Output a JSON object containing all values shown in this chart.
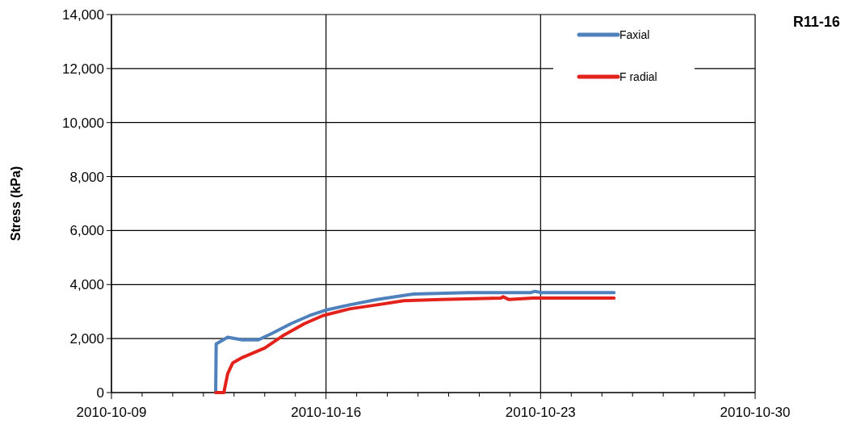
{
  "chart_data": {
    "type": "line",
    "title": "R11-16",
    "ylabel": "Stress (kPa)",
    "xlim": [
      "2010-10-09",
      "2010-10-30"
    ],
    "xticks": [
      {
        "value": "2010-10-09",
        "label": "2010-10-09"
      },
      {
        "value": "2010-10-10",
        "label": null
      },
      {
        "value": "2010-10-11",
        "label": null
      },
      {
        "value": "2010-10-12",
        "label": null
      },
      {
        "value": "2010-10-13",
        "label": null
      },
      {
        "value": "2010-10-14",
        "label": null
      },
      {
        "value": "2010-10-15",
        "label": null
      },
      {
        "value": "2010-10-16",
        "label": "2010-10-16"
      },
      {
        "value": "2010-10-17",
        "label": null
      },
      {
        "value": "2010-10-18",
        "label": null
      },
      {
        "value": "2010-10-19",
        "label": null
      },
      {
        "value": "2010-10-20",
        "label": null
      },
      {
        "value": "2010-10-21",
        "label": null
      },
      {
        "value": "2010-10-22",
        "label": null
      },
      {
        "value": "2010-10-23",
        "label": "2010-10-23"
      },
      {
        "value": "2010-10-24",
        "label": null
      },
      {
        "value": "2010-10-25",
        "label": null
      },
      {
        "value": "2010-10-26",
        "label": null
      },
      {
        "value": "2010-10-27",
        "label": null
      },
      {
        "value": "2010-10-28",
        "label": null
      },
      {
        "value": "2010-10-29",
        "label": null
      },
      {
        "value": "2010-10-30",
        "label": "2010-10-30"
      }
    ],
    "ylim": [
      0,
      14000
    ],
    "yticks": [
      {
        "value": 0,
        "label": "0"
      },
      {
        "value": 2000,
        "label": "2,000"
      },
      {
        "value": 4000,
        "label": "4,000"
      },
      {
        "value": 6000,
        "label": "6,000"
      },
      {
        "value": 8000,
        "label": "8,000"
      },
      {
        "value": 10000,
        "label": "10,000"
      },
      {
        "value": 12000,
        "label": "12,000"
      },
      {
        "value": 14000,
        "label": "14,000"
      }
    ],
    "grid": true,
    "legend": "top right",
    "marker": "none",
    "line_style": "solid",
    "series": [
      {
        "name": "Faxial",
        "color": "#4f81bd",
        "x": [
          "2010-10-12T09:36",
          "2010-10-12T10:00",
          "2010-10-12T19:00",
          "2010-10-13T06:30",
          "2010-10-13T19:00",
          "2010-10-14T06:00",
          "2010-10-14T20:30",
          "2010-10-15T11:00",
          "2010-10-15T23:30",
          "2010-10-16T18:30",
          "2010-10-17T16:00",
          "2010-10-18T13:00",
          "2010-10-18T21:00",
          "2010-10-20T15:30",
          "2010-10-22T16:00",
          "2010-10-22T19:30",
          "2010-10-23T00:30",
          "2010-10-25T09:30"
        ],
        "values": [
          0,
          1800,
          2050,
          1950,
          1950,
          2200,
          2550,
          2850,
          3050,
          3250,
          3450,
          3600,
          3650,
          3700,
          3700,
          3750,
          3700,
          3700
        ]
      },
      {
        "name": "F radial",
        "color": "#e3231b",
        "x": [
          "2010-10-12T09:36",
          "2010-10-12T16:00",
          "2010-10-12T19:00",
          "2010-10-12T23:00",
          "2010-10-13T06:30",
          "2010-10-14T00:00",
          "2010-10-14T14:00",
          "2010-10-15T07:00",
          "2010-10-15T21:30",
          "2010-10-16T18:30",
          "2010-10-17T16:00",
          "2010-10-18T13:00",
          "2010-10-19T18:30",
          "2010-10-21T17:00",
          "2010-10-21T18:30",
          "2010-10-21T23:00",
          "2010-10-22T18:00",
          "2010-10-25T09:30"
        ],
        "values": [
          0,
          0,
          700,
          1100,
          1300,
          1650,
          2100,
          2550,
          2850,
          3100,
          3250,
          3400,
          3450,
          3500,
          3550,
          3450,
          3500,
          3500
        ]
      }
    ]
  }
}
